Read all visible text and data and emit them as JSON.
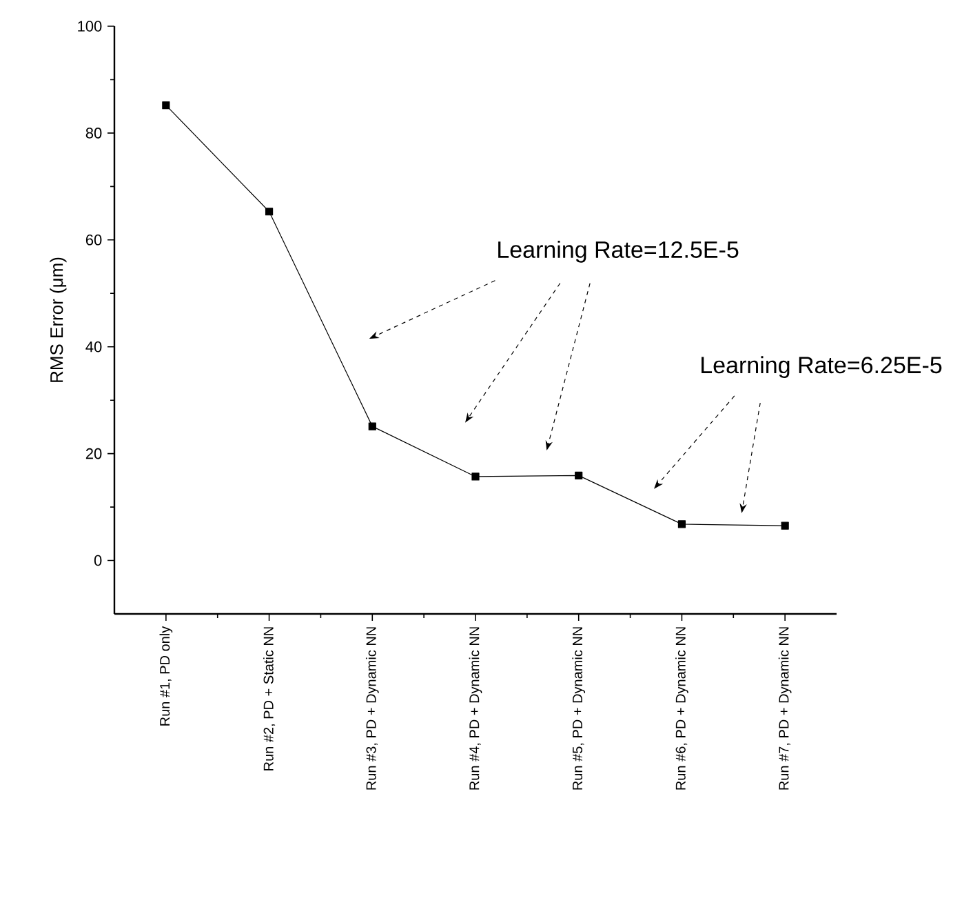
{
  "chart_data": {
    "type": "line",
    "ylabel": "RMS Error (μm)",
    "categories": [
      "Run #1, PD only",
      "Run #2, PD + Static NN",
      "Run #3, PD + Dynamic NN",
      "Run #4, PD + Dynamic NN",
      "Run #5, PD + Dynamic NN",
      "Run #6, PD + Dynamic NN",
      "Run #7, PD + Dynamic NN"
    ],
    "series": [
      {
        "color": "#000000",
        "values": [
          85.2,
          65.3,
          25.1,
          15.7,
          15.9,
          6.8,
          6.5
        ]
      }
    ],
    "ylim": [
      -10,
      100
    ],
    "yticks": [
      0,
      20,
      40,
      60,
      80,
      100
    ],
    "annotations": [
      "Learning Rate=12.5E-5",
      "Learning Rate=6.25E-5"
    ],
    "marker": "square",
    "line_style": "solid",
    "grid": false
  }
}
